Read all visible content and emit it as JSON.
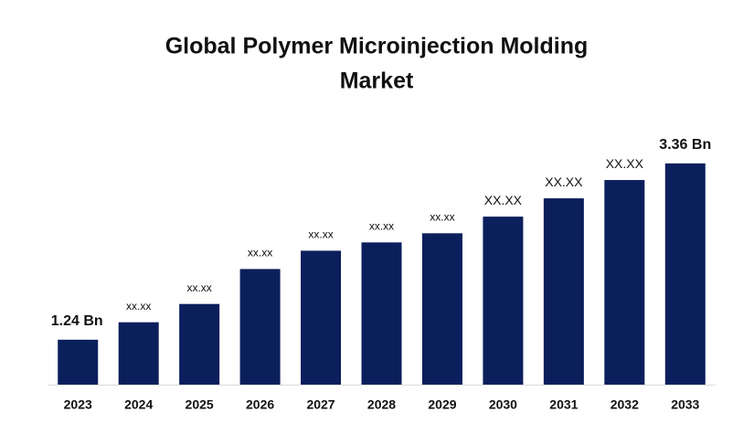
{
  "chart_data": {
    "type": "bar",
    "title": "Global Polymer Microinjection Molding",
    "subtitle": "Market",
    "categories": [
      "2023",
      "2024",
      "2025",
      "2026",
      "2027",
      "2028",
      "2029",
      "2030",
      "2031",
      "2032",
      "2033"
    ],
    "values": [
      1.24,
      1.45,
      1.67,
      2.09,
      2.31,
      2.41,
      2.52,
      2.72,
      2.94,
      3.16,
      3.36
    ],
    "value_labels": [
      "1.24 Bn",
      "xx.xx",
      "xx.xx",
      "xx.xx",
      "xx.xx",
      "xx.xx",
      "xx.xx",
      "XX.XX",
      "XX.XX",
      "XX.XX",
      "3.36 Bn"
    ],
    "color": "#0b1f5c",
    "ylim": [
      0.7,
      3.6
    ]
  }
}
